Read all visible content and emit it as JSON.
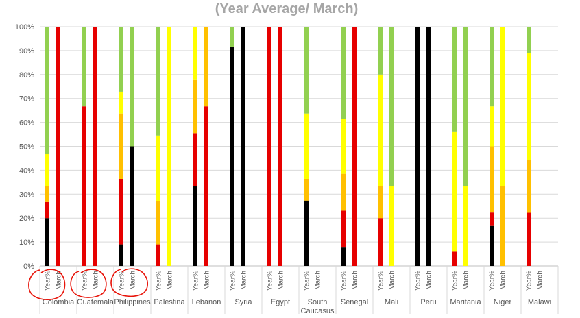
{
  "chart_data": {
    "type": "bar",
    "stacked": true,
    "percent": true,
    "title": "(Year Average/ March)",
    "xlabel": "",
    "ylabel": "",
    "ylim": [
      0,
      100
    ],
    "yticks": [
      "0%",
      "10%",
      "20%",
      "30%",
      "40%",
      "50%",
      "60%",
      "70%",
      "80%",
      "90%",
      "100%"
    ],
    "grid": true,
    "bar_labels": [
      "Year%",
      "March"
    ],
    "categories": [
      "Colombia",
      "Guatemala",
      "Philippines",
      "Palestina",
      "Lebanon",
      "Syria",
      "Egypt",
      "South Caucasus",
      "Senegal",
      "Mali",
      "Peru",
      "Maritania",
      "Niger",
      "Malawi"
    ],
    "series_order": [
      "Black",
      "Red",
      "Orange",
      "Yellow",
      "Green"
    ],
    "colors": {
      "Black": "#000000",
      "Red": "#e60000",
      "Orange": "#ffc000",
      "Yellow": "#ffff00",
      "Green": "#92d050"
    },
    "data": {
      "Colombia": {
        "Year%": [
          20,
          6.7,
          6.7,
          13.3,
          53.3
        ],
        "March": [
          0,
          100,
          0,
          0,
          0
        ]
      },
      "Guatemala": {
        "Year%": [
          0,
          66.7,
          0,
          0,
          33.3
        ],
        "March": [
          0,
          100,
          0,
          0,
          0
        ]
      },
      "Philippines": {
        "Year%": [
          9,
          27.4,
          27.3,
          9.1,
          27.2
        ],
        "March": [
          50,
          0,
          0,
          0,
          50
        ]
      },
      "Palestina": {
        "Year%": [
          0,
          9,
          18.2,
          27.3,
          45.5
        ],
        "March": [
          0,
          0,
          0,
          100,
          0
        ]
      },
      "Lebanon": {
        "Year%": [
          33.3,
          22.2,
          22.2,
          22.3,
          0
        ],
        "March": [
          0,
          66.7,
          33.3,
          0,
          0
        ]
      },
      "Syria": {
        "Year%": [
          91.7,
          0,
          0,
          0,
          8.3
        ],
        "March": [
          100,
          0,
          0,
          0,
          0
        ]
      },
      "Egypt": {
        "Year%": [
          0,
          100,
          0,
          0,
          0
        ],
        "March": [
          0,
          100,
          0,
          0,
          0
        ]
      },
      "South Caucasus": {
        "Year%": [
          27.3,
          0,
          9.1,
          27.3,
          36.3
        ],
        "March": [
          0,
          0,
          0,
          0,
          0
        ]
      },
      "Senegal": {
        "Year%": [
          7.7,
          15.4,
          15.4,
          23,
          38.5
        ],
        "March": [
          0,
          100,
          0,
          0,
          0
        ]
      },
      "Mali": {
        "Year%": [
          0,
          20,
          13.3,
          46.7,
          20
        ],
        "March": [
          0,
          0,
          0,
          33.3,
          66.7
        ]
      },
      "Peru": {
        "Year%": [
          100,
          0,
          0,
          0,
          0
        ],
        "March": [
          100,
          0,
          0,
          0,
          0
        ]
      },
      "Maritania": {
        "Year%": [
          0,
          6.2,
          0,
          50,
          43.8
        ],
        "March": [
          0,
          0,
          0,
          33.3,
          66.7
        ]
      },
      "Niger": {
        "Year%": [
          16.7,
          5.6,
          27.7,
          16.7,
          33.3
        ],
        "March": [
          0,
          0,
          33.3,
          66.7,
          0
        ]
      },
      "Malawi": {
        "Year%": [
          0,
          22.2,
          22.2,
          44.5,
          11.1
        ],
        "March": [
          0,
          0,
          0,
          0,
          0
        ]
      }
    }
  }
}
